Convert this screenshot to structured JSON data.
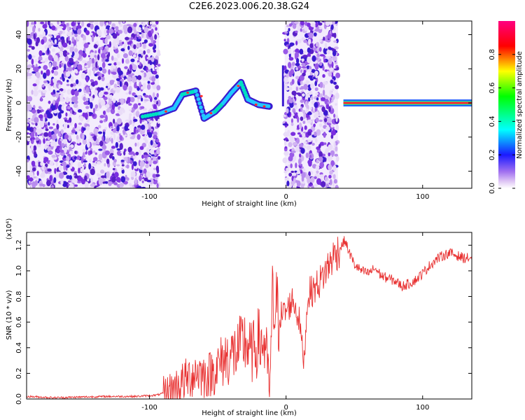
{
  "title": "C2E6.2023.006.20.38.G24",
  "chart_data": [
    {
      "type": "heatmap",
      "xlabel": "Height of straight line (km)",
      "ylabel": "Frequency (Hz)",
      "xlim": [
        -190,
        136
      ],
      "ylim": [
        -50,
        48
      ],
      "xticks": [
        -100,
        0,
        100
      ],
      "xtick_labels": [
        "-100",
        "0",
        "100"
      ],
      "yticks": [
        -40,
        -20,
        0,
        20,
        40
      ],
      "ytick_labels": [
        "-40",
        "-20",
        "0",
        "20",
        "40"
      ],
      "colorbar": {
        "label": "Normalized spectral amplitude",
        "range": [
          0,
          1
        ],
        "ticks": [
          0,
          0.2,
          0.4,
          0.6,
          0.8
        ],
        "tick_labels": [
          "0.0",
          "0.2",
          "0.4",
          "0.6",
          "0.8"
        ],
        "colormap": [
          "#ffffff",
          "#e0c8f5",
          "#7a2be0",
          "#1a1aff",
          "#00ffff",
          "#00ff00",
          "#ffff00",
          "#ff0000",
          "#ff0080"
        ]
      },
      "regions": [
        {
          "kind": "noise",
          "x": [
            -190,
            -93
          ],
          "freq": [
            -50,
            48
          ]
        },
        {
          "kind": "signal",
          "x": [
            -105,
            -12
          ],
          "freq_start": -8,
          "freq_end": 2
        },
        {
          "kind": "noise",
          "x": [
            -1,
            38
          ],
          "freq": [
            -50,
            48
          ]
        },
        {
          "kind": "carrier",
          "x": [
            42,
            136
          ],
          "freq": 0,
          "amplitude": 0.95
        }
      ]
    },
    {
      "type": "line",
      "xlabel": "Height of straight line (km)",
      "ylabel": "SNR (10 * v/v)",
      "yscale_note": "(x10⁴)",
      "xlim": [
        -190,
        136
      ],
      "ylim": [
        0,
        1.3
      ],
      "xticks": [
        -100,
        0,
        100
      ],
      "xtick_labels": [
        "-100",
        "0",
        "100"
      ],
      "yticks": [
        0,
        0.2,
        0.4,
        0.6,
        0.8,
        1.0,
        1.2
      ],
      "ytick_labels": [
        "0.0",
        "0.2",
        "0.4",
        "0.6",
        "0.8",
        "1.0",
        "1.2"
      ],
      "series": [
        {
          "color": "#e83030",
          "x": [
            -190,
            -170,
            -150,
            -130,
            -110,
            -95,
            -88,
            -80,
            -72,
            -65,
            -60,
            -55,
            -50,
            -45,
            -40,
            -35,
            -30,
            -25,
            -20,
            -15,
            -12,
            -10,
            -5,
            0,
            5,
            10,
            13,
            16,
            20,
            25,
            30,
            35,
            40,
            43,
            46,
            50,
            55,
            60,
            65,
            70,
            75,
            80,
            85,
            90,
            95,
            100,
            105,
            110,
            115,
            120,
            125,
            130,
            136
          ],
          "y": [
            0.02,
            0.01,
            0.015,
            0.02,
            0.02,
            0.03,
            0.05,
            0.1,
            0.16,
            0.22,
            0.18,
            0.2,
            0.25,
            0.32,
            0.34,
            0.38,
            0.45,
            0.35,
            0.45,
            0.42,
            0.05,
            0.72,
            0.65,
            0.68,
            0.78,
            0.6,
            0.28,
            0.82,
            0.85,
            0.92,
            1.02,
            1.12,
            1.18,
            1.24,
            1.15,
            1.05,
            1.0,
            0.98,
            1.02,
            0.96,
            0.94,
            0.92,
            0.88,
            0.9,
            0.93,
            0.98,
            1.04,
            1.09,
            1.12,
            1.14,
            1.12,
            1.1,
            1.1
          ]
        }
      ]
    }
  ]
}
